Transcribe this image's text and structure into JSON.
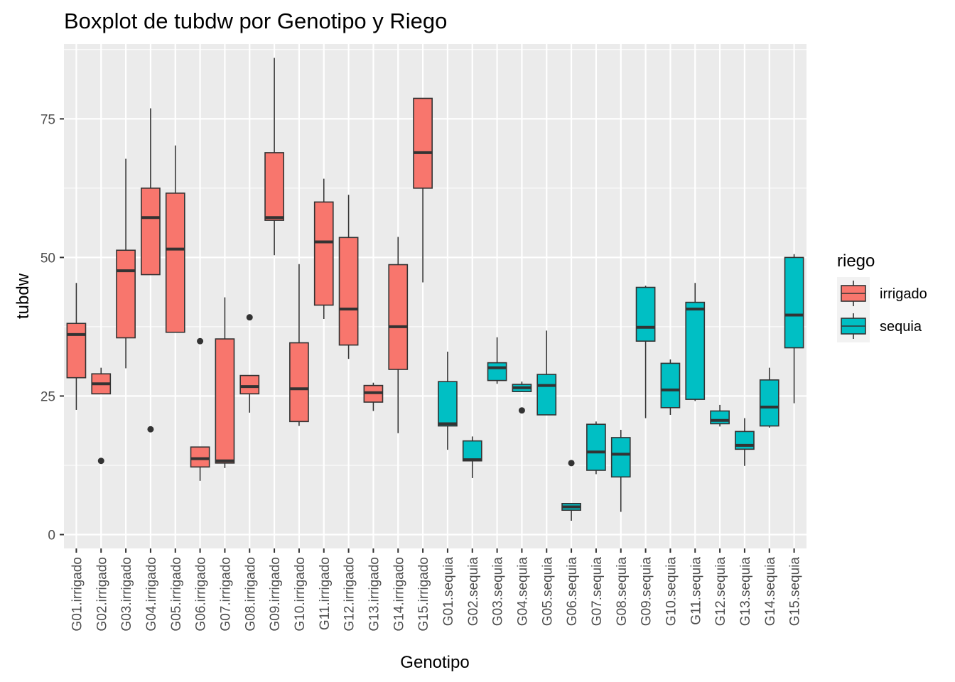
{
  "chart_data": {
    "type": "boxplot",
    "title": "Boxplot de tubdw por Genotipo y Riego",
    "xlabel": "Genotipo",
    "ylabel": "tubdw",
    "ylim": [
      -2.5,
      88.5
    ],
    "yticks": [
      0,
      25,
      50,
      75
    ],
    "grid": true,
    "legend": {
      "title": "riego",
      "position": "right"
    },
    "series": [
      {
        "name": "irrigado",
        "color": "#F8766D"
      },
      {
        "name": "sequia",
        "color": "#00BFC4"
      }
    ],
    "categories": [
      "G01.irrigado",
      "G02.irrigado",
      "G03.irrigado",
      "G04.irrigado",
      "G05.irrigado",
      "G06.irrigado",
      "G07.irrigado",
      "G08.irrigado",
      "G09.irrigado",
      "G10.irrigado",
      "G11.irrigado",
      "G12.irrigado",
      "G13.irrigado",
      "G14.irrigado",
      "G15.irrigado",
      "G01.sequia",
      "G02.sequia",
      "G03.sequia",
      "G04.sequia",
      "G05.sequia",
      "G06.sequia",
      "G07.sequia",
      "G08.sequia",
      "G09.sequia",
      "G10.sequia",
      "G11.sequia",
      "G12.sequia",
      "G13.sequia",
      "G14.sequia",
      "G15.sequia"
    ],
    "boxes": [
      {
        "group": "irrigado",
        "min": 22.5,
        "q1": 28.3,
        "median": 36.1,
        "q3": 38.1,
        "max": 45.4,
        "outliers": []
      },
      {
        "group": "irrigado",
        "min": 25.4,
        "q1": 25.4,
        "median": 27.2,
        "q3": 29.0,
        "max": 30.1,
        "outliers": [
          13.3
        ]
      },
      {
        "group": "irrigado",
        "min": 30.0,
        "q1": 35.5,
        "median": 47.6,
        "q3": 51.3,
        "max": 67.8,
        "outliers": []
      },
      {
        "group": "irrigado",
        "min": 46.9,
        "q1": 46.9,
        "median": 57.2,
        "q3": 62.5,
        "max": 76.9,
        "outliers": [
          19.0
        ]
      },
      {
        "group": "irrigado",
        "min": 36.5,
        "q1": 36.5,
        "median": 51.5,
        "q3": 61.6,
        "max": 70.2,
        "outliers": []
      },
      {
        "group": "irrigado",
        "min": 9.7,
        "q1": 12.2,
        "median": 13.7,
        "q3": 15.8,
        "max": 15.8,
        "outliers": [
          34.9
        ]
      },
      {
        "group": "irrigado",
        "min": 12.0,
        "q1": 12.9,
        "median": 13.3,
        "q3": 35.3,
        "max": 42.8,
        "outliers": []
      },
      {
        "group": "irrigado",
        "min": 22.0,
        "q1": 25.4,
        "median": 26.7,
        "q3": 28.7,
        "max": 28.7,
        "outliers": [
          39.2
        ]
      },
      {
        "group": "irrigado",
        "min": 50.4,
        "q1": 56.7,
        "median": 57.2,
        "q3": 68.9,
        "max": 86.0,
        "outliers": []
      },
      {
        "group": "irrigado",
        "min": 19.6,
        "q1": 20.4,
        "median": 26.3,
        "q3": 34.6,
        "max": 48.8,
        "outliers": []
      },
      {
        "group": "irrigado",
        "min": 38.9,
        "q1": 41.4,
        "median": 52.8,
        "q3": 60.0,
        "max": 64.2,
        "outliers": []
      },
      {
        "group": "irrigado",
        "min": 31.7,
        "q1": 34.2,
        "median": 40.7,
        "q3": 53.6,
        "max": 61.3,
        "outliers": []
      },
      {
        "group": "irrigado",
        "min": 22.3,
        "q1": 23.9,
        "median": 25.6,
        "q3": 26.9,
        "max": 27.4,
        "outliers": []
      },
      {
        "group": "irrigado",
        "min": 18.3,
        "q1": 29.8,
        "median": 37.5,
        "q3": 48.7,
        "max": 53.7,
        "outliers": []
      },
      {
        "group": "irrigado",
        "min": 45.5,
        "q1": 62.5,
        "median": 68.9,
        "q3": 78.7,
        "max": 78.7,
        "outliers": []
      },
      {
        "group": "sequia",
        "min": 15.3,
        "q1": 19.6,
        "median": 20.0,
        "q3": 27.6,
        "max": 33.0,
        "outliers": []
      },
      {
        "group": "sequia",
        "min": 10.2,
        "q1": 13.3,
        "median": 13.5,
        "q3": 16.9,
        "max": 17.7,
        "outliers": []
      },
      {
        "group": "sequia",
        "min": 27.2,
        "q1": 27.8,
        "median": 30.1,
        "q3": 31.0,
        "max": 35.6,
        "outliers": []
      },
      {
        "group": "sequia",
        "min": 25.8,
        "q1": 25.8,
        "median": 26.5,
        "q3": 27.1,
        "max": 27.6,
        "outliers": [
          22.4
        ]
      },
      {
        "group": "sequia",
        "min": 21.6,
        "q1": 21.6,
        "median": 26.9,
        "q3": 28.9,
        "max": 36.8,
        "outliers": []
      },
      {
        "group": "sequia",
        "min": 2.5,
        "q1": 4.4,
        "median": 5.0,
        "q3": 5.6,
        "max": 5.6,
        "outliers": [
          12.9
        ]
      },
      {
        "group": "sequia",
        "min": 10.9,
        "q1": 11.6,
        "median": 14.9,
        "q3": 19.9,
        "max": 20.4,
        "outliers": []
      },
      {
        "group": "sequia",
        "min": 4.1,
        "q1": 10.4,
        "median": 14.5,
        "q3": 17.5,
        "max": 18.9,
        "outliers": []
      },
      {
        "group": "sequia",
        "min": 21.0,
        "q1": 34.9,
        "median": 37.4,
        "q3": 44.6,
        "max": 44.9,
        "outliers": []
      },
      {
        "group": "sequia",
        "min": 21.6,
        "q1": 22.9,
        "median": 26.1,
        "q3": 30.9,
        "max": 31.6,
        "outliers": []
      },
      {
        "group": "sequia",
        "min": 24.1,
        "q1": 24.4,
        "median": 40.7,
        "q3": 41.9,
        "max": 45.4,
        "outliers": []
      },
      {
        "group": "sequia",
        "min": 19.5,
        "q1": 20.0,
        "median": 20.6,
        "q3": 22.3,
        "max": 23.4,
        "outliers": []
      },
      {
        "group": "sequia",
        "min": 12.4,
        "q1": 15.4,
        "median": 16.1,
        "q3": 18.6,
        "max": 21.0,
        "outliers": []
      },
      {
        "group": "sequia",
        "min": 19.3,
        "q1": 19.6,
        "median": 23.0,
        "q3": 27.9,
        "max": 30.1,
        "outliers": []
      },
      {
        "group": "sequia",
        "min": 23.7,
        "q1": 33.7,
        "median": 39.6,
        "q3": 50.0,
        "max": 50.6,
        "outliers": []
      }
    ]
  }
}
